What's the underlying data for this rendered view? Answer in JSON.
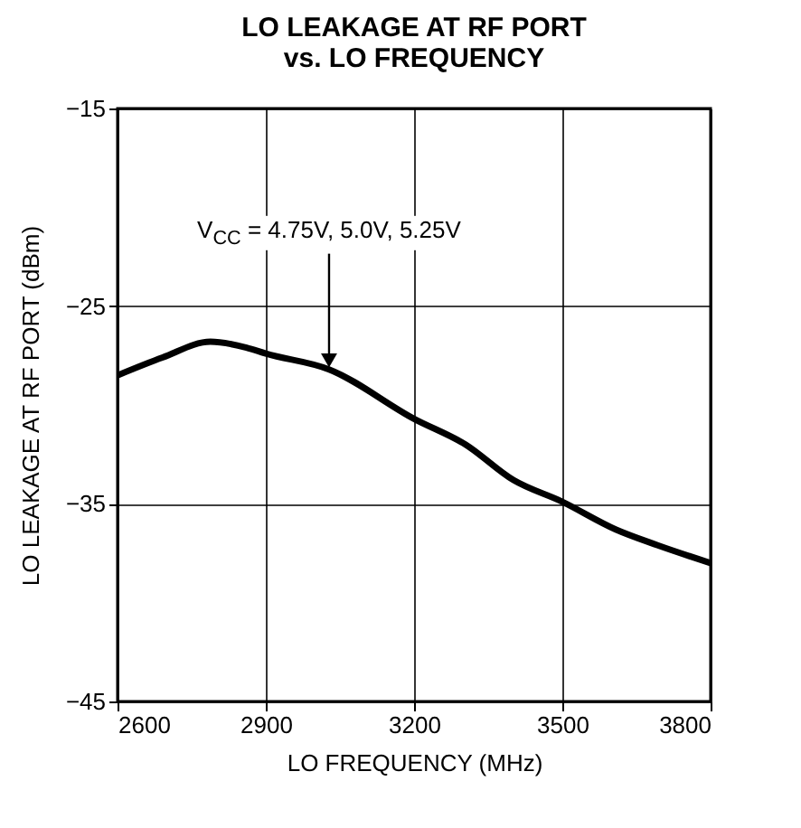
{
  "chart_data": {
    "type": "line",
    "title": "LO LEAKAGE AT RF PORT\nvs. LO FREQUENCY",
    "xlabel": "LO FREQUENCY (MHz)",
    "ylabel": "LO LEAKAGE AT RF PORT (dBm)",
    "x": [
      2600,
      2691,
      2788,
      2861,
      2900,
      3028,
      3200,
      3304,
      3401,
      3500,
      3608,
      3693,
      3800
    ],
    "series": [
      {
        "color": "#000000",
        "values": [
          -28.5,
          -27.6,
          -26.8,
          -27.1,
          -27.4,
          -28.2,
          -30.7,
          -32.0,
          -33.8,
          -34.9,
          -36.3,
          -37.1,
          -38.0
        ]
      }
    ],
    "xlim": [
      2600,
      3800
    ],
    "xticks": [
      2600,
      2900,
      3200,
      3500,
      3800
    ],
    "ylim": [
      -45,
      -15
    ],
    "yticks": [
      -45,
      -35,
      -25,
      -15
    ],
    "grid": true,
    "marker": "none",
    "line_style": "solid",
    "annotations": [
      {
        "text": "V$_{CC}$ = 4.75V, 5.0V, 5.25V",
        "x": 3028,
        "y": -28.2
      }
    ]
  }
}
